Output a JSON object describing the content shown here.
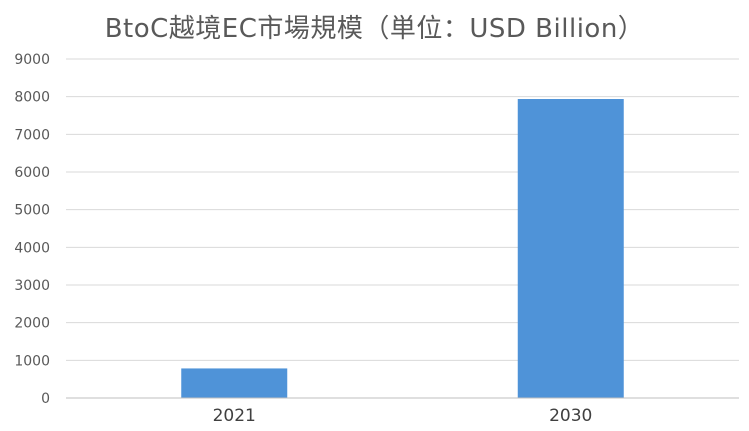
{
  "chart_data": {
    "type": "bar",
    "title": "BtoC越境EC市場規模（単位：USD Billion）",
    "categories": [
      "2021",
      "2030"
    ],
    "series": [
      {
        "values": [
          785,
          7938
        ]
      }
    ],
    "ylim": [
      0,
      9000
    ],
    "yticks": [
      0,
      1000,
      2000,
      3000,
      4000,
      5000,
      6000,
      7000,
      8000,
      9000
    ],
    "grid": true,
    "legend": "none",
    "colors": {
      "bar": "#4f93d8",
      "grid": "#d9d9d9",
      "axis": "#bfbfbf"
    }
  }
}
